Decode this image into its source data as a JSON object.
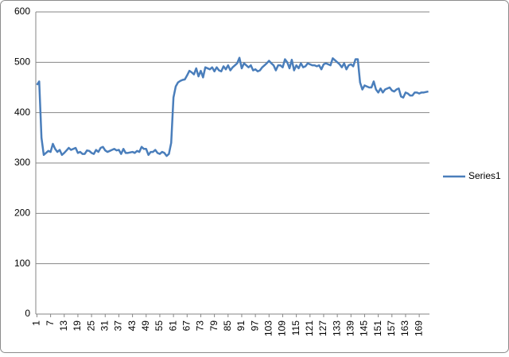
{
  "chart_data": {
    "type": "line",
    "categories": [
      1,
      null,
      null,
      null,
      null,
      null,
      7,
      null,
      null,
      null,
      null,
      null,
      13,
      null,
      null,
      null,
      null,
      null,
      19,
      null,
      null,
      null,
      null,
      null,
      25,
      null,
      null,
      null,
      null,
      null,
      31,
      null,
      null,
      null,
      null,
      null,
      37,
      null,
      null,
      null,
      null,
      null,
      43,
      null,
      null,
      null,
      null,
      null,
      49,
      null,
      null,
      null,
      null,
      null,
      55,
      null,
      null,
      null,
      null,
      null,
      61,
      null,
      null,
      null,
      null,
      null,
      67,
      null,
      null,
      null,
      null,
      null,
      73,
      null,
      null,
      null,
      null,
      null,
      79,
      null,
      null,
      null,
      null,
      null,
      85,
      null,
      null,
      null,
      null,
      null,
      91,
      null,
      null,
      null,
      null,
      null,
      97,
      null,
      null,
      null,
      null,
      null,
      103,
      null,
      null,
      null,
      null,
      null,
      109,
      null,
      null,
      null,
      null,
      null,
      115,
      null,
      null,
      null,
      null,
      null,
      121,
      null,
      null,
      null,
      null,
      null,
      127,
      null,
      null,
      null,
      null,
      null,
      133,
      null,
      null,
      null,
      null,
      null,
      139,
      null,
      null,
      null,
      null,
      null,
      145,
      null,
      null,
      null,
      null,
      null,
      151,
      null,
      null,
      null,
      null,
      null,
      157,
      null,
      null,
      null,
      null,
      null,
      163,
      null,
      null,
      null,
      null,
      null,
      169,
      null,
      null,
      null,
      null
    ],
    "series": [
      {
        "name": "Series1",
        "color": "#4a7ebb",
        "values": [
          455,
          462,
          350,
          316,
          320,
          324,
          322,
          338,
          328,
          322,
          326,
          316,
          320,
          325,
          330,
          326,
          328,
          330,
          320,
          322,
          318,
          318,
          325,
          324,
          320,
          318,
          326,
          322,
          330,
          332,
          325,
          322,
          324,
          326,
          328,
          325,
          326,
          318,
          328,
          320,
          320,
          321,
          322,
          320,
          324,
          322,
          332,
          328,
          328,
          316,
          322,
          322,
          326,
          320,
          318,
          322,
          320,
          314,
          318,
          340,
          430,
          452,
          460,
          463,
          465,
          466,
          474,
          483,
          480,
          476,
          488,
          472,
          483,
          470,
          490,
          488,
          486,
          490,
          482,
          490,
          484,
          482,
          492,
          486,
          494,
          484,
          490,
          494,
          498,
          509,
          488,
          498,
          494,
          490,
          494,
          484,
          486,
          482,
          484,
          490,
          494,
          498,
          503,
          498,
          494,
          484,
          494,
          494,
          490,
          506,
          500,
          488,
          505,
          484,
          494,
          488,
          498,
          490,
          492,
          498,
          496,
          494,
          494,
          492,
          494,
          486,
          496,
          498,
          496,
          494,
          508,
          504,
          500,
          496,
          490,
          498,
          486,
          494,
          496,
          492,
          506,
          506,
          460,
          446,
          454,
          452,
          450,
          450,
          462,
          446,
          440,
          448,
          440,
          446,
          448,
          450,
          444,
          442,
          446,
          448,
          432,
          430,
          440,
          438,
          434,
          434,
          440,
          440,
          438,
          440,
          440,
          441,
          442
        ]
      }
    ],
    "ylim": [
      0,
      600
    ],
    "yticks": [
      0,
      100,
      200,
      300,
      400,
      500,
      600
    ],
    "grid": true,
    "legend": "right"
  }
}
